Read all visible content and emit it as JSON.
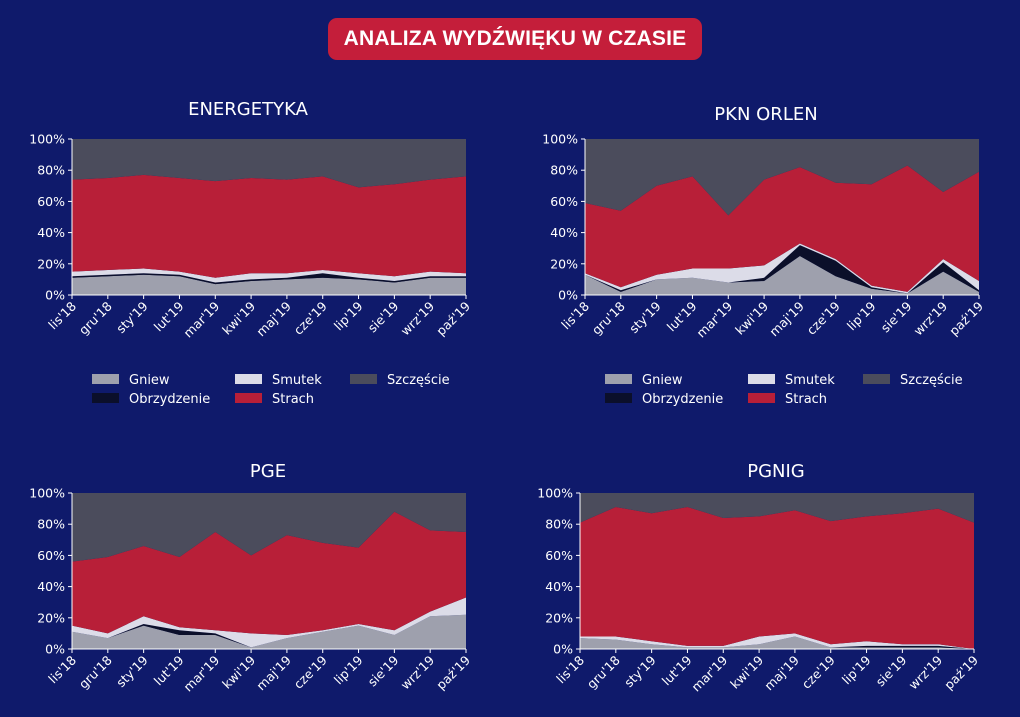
{
  "header": {
    "title": "ANALIZA WYDŹWIĘKU W CZASIE"
  },
  "colors": {
    "background": "#0f1a6b",
    "badge": "#c41e3a",
    "Gniew": "#9ea0ad",
    "Obrzydzenie": "#0b0f2a",
    "Smutek": "#dcdce8",
    "Strach": "#b81f38",
    "Szczęście": "#4b4c5c"
  },
  "legend": {
    "items": [
      {
        "label": "Gniew",
        "key": "Gniew"
      },
      {
        "label": "Smutek",
        "key": "Smutek"
      },
      {
        "label": "Szczęście",
        "key": "Szczęście"
      },
      {
        "label": "Obrzydzenie",
        "key": "Obrzydzenie"
      },
      {
        "label": "Strach",
        "key": "Strach"
      }
    ]
  },
  "chart_data": [
    {
      "type": "area",
      "stacked": true,
      "title": "ENERGETYKA",
      "categories": [
        "lis'18",
        "gru'18",
        "sty'19",
        "lut'19",
        "mar'19",
        "kwi'19",
        "maj'19",
        "cze'19",
        "lip'19",
        "sie'19",
        "wrz'19",
        "paź'19"
      ],
      "ylim": [
        0,
        100
      ],
      "yticks": [
        "0%",
        "20%",
        "40%",
        "60%",
        "80%",
        "100%"
      ],
      "series": [
        {
          "name": "Gniew",
          "values": [
            11,
            12,
            13,
            12,
            7,
            9,
            10,
            11,
            10,
            8,
            11,
            11
          ]
        },
        {
          "name": "Obrzydzenie",
          "values": [
            1,
            1,
            1,
            1,
            1,
            1,
            1,
            3,
            1,
            1,
            1,
            1
          ]
        },
        {
          "name": "Smutek",
          "values": [
            3,
            3,
            3,
            2,
            3,
            4,
            3,
            2,
            3,
            3,
            3,
            2
          ]
        },
        {
          "name": "Strach",
          "values": [
            59,
            59,
            60,
            60,
            62,
            61,
            60,
            60,
            55,
            59,
            59,
            62
          ]
        },
        {
          "name": "Szczęście",
          "values": [
            26,
            25,
            23,
            25,
            27,
            25,
            26,
            24,
            31,
            29,
            26,
            24
          ]
        }
      ]
    },
    {
      "type": "area",
      "stacked": true,
      "title": "PKN ORLEN",
      "categories": [
        "lis'18",
        "gru'18",
        "sty'19",
        "lut'19",
        "mar'19",
        "kwi'19",
        "maj'19",
        "cze'19",
        "lip'19",
        "sie'19",
        "wrz'19",
        "paź'19"
      ],
      "ylim": [
        0,
        100
      ],
      "yticks": [
        "0%",
        "20%",
        "40%",
        "60%",
        "80%",
        "100%"
      ],
      "series": [
        {
          "name": "Gniew",
          "values": [
            13,
            2,
            10,
            11,
            8,
            9,
            25,
            12,
            4,
            1,
            15,
            2
          ]
        },
        {
          "name": "Obrzydzenie",
          "values": [
            0,
            1,
            0,
            0,
            0,
            2,
            7,
            10,
            1,
            0,
            6,
            1
          ]
        },
        {
          "name": "Smutek",
          "values": [
            1,
            2,
            3,
            6,
            9,
            8,
            1,
            1,
            1,
            1,
            2,
            6
          ]
        },
        {
          "name": "Strach",
          "values": [
            45,
            49,
            57,
            59,
            34,
            55,
            49,
            49,
            65,
            81,
            43,
            70
          ]
        },
        {
          "name": "Szczęście",
          "values": [
            41,
            46,
            30,
            24,
            49,
            26,
            18,
            28,
            29,
            17,
            34,
            21
          ]
        }
      ]
    },
    {
      "type": "area",
      "stacked": true,
      "title": "PGE",
      "categories": [
        "lis'18",
        "gru'18",
        "sty'19",
        "lut'19",
        "mar'19",
        "kwi'19",
        "maj'19",
        "cze'19",
        "lip'19",
        "sie'19",
        "wrz'19",
        "paź'19"
      ],
      "ylim": [
        0,
        100
      ],
      "yticks": [
        "0%",
        "20%",
        "40%",
        "60%",
        "80%",
        "100%"
      ],
      "series": [
        {
          "name": "Gniew",
          "values": [
            11,
            7,
            15,
            9,
            9,
            1,
            7,
            11,
            15,
            9,
            21,
            22
          ]
        },
        {
          "name": "Obrzydzenie",
          "values": [
            0,
            0,
            1,
            3,
            1,
            0,
            0,
            0,
            0,
            0,
            0,
            0
          ]
        },
        {
          "name": "Smutek",
          "values": [
            4,
            3,
            5,
            2,
            2,
            9,
            2,
            1,
            1,
            3,
            3,
            11
          ]
        },
        {
          "name": "Strach",
          "values": [
            41,
            49,
            45,
            45,
            63,
            50,
            64,
            56,
            49,
            76,
            52,
            42
          ]
        },
        {
          "name": "Szczęście",
          "values": [
            44,
            41,
            34,
            41,
            25,
            40,
            27,
            32,
            35,
            12,
            24,
            25
          ]
        }
      ]
    },
    {
      "type": "area",
      "stacked": true,
      "title": "PGNIG",
      "categories": [
        "lis'18",
        "gru'18",
        "sty'19",
        "lut'19",
        "mar'19",
        "kwi'19",
        "maj'19",
        "cze'19",
        "lip'19",
        "sie'19",
        "wrz'19",
        "paź'19"
      ],
      "ylim": [
        0,
        100
      ],
      "yticks": [
        "0%",
        "20%",
        "40%",
        "60%",
        "80%",
        "100%"
      ],
      "series": [
        {
          "name": "Gniew",
          "values": [
            7,
            6,
            3,
            1,
            1,
            3,
            8,
            1,
            1,
            1,
            1,
            0
          ]
        },
        {
          "name": "Obrzydzenie",
          "values": [
            0,
            0,
            0,
            0,
            0,
            0,
            0,
            0,
            1,
            1,
            1,
            0
          ]
        },
        {
          "name": "Smutek",
          "values": [
            1,
            2,
            2,
            1,
            1,
            5,
            2,
            2,
            3,
            1,
            1,
            0
          ]
        },
        {
          "name": "Strach",
          "values": [
            73,
            83,
            82,
            89,
            82,
            77,
            79,
            79,
            80,
            84,
            87,
            81
          ]
        },
        {
          "name": "Szczęście",
          "values": [
            19,
            9,
            13,
            9,
            16,
            15,
            11,
            18,
            15,
            13,
            10,
            19
          ]
        }
      ]
    }
  ]
}
